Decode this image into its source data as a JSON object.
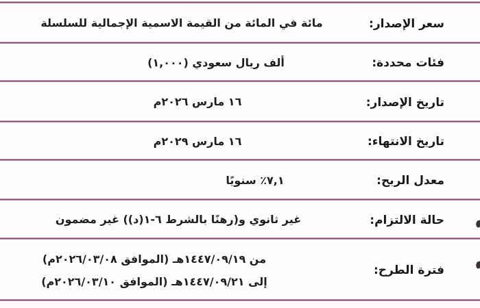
{
  "theme": {
    "divider_core_color": "#7d4b68",
    "divider_glow_color": "#f0d4e3",
    "text_color": "#1d1b1c",
    "background_color": "#fdfcfd"
  },
  "table": {
    "rows": [
      {
        "label": "سعر الإصدار:",
        "value": "مائة في المائة من القيمة الاسمية الإجمالية للسلسلة"
      },
      {
        "label": "فئات محددة:",
        "value": "ألف ريال سعودي (١,٠٠٠)"
      },
      {
        "label": "تاريخ الإصدار:",
        "value": "١٦ مارس ٢٠٢٦م"
      },
      {
        "label": "تاريخ الانتهاء:",
        "value": "١٦ مارس ٢٠٢٩م"
      },
      {
        "label": "معدل الربح:",
        "value": "٧,١٪ سنويًا"
      },
      {
        "label": "حالة الالتزام:",
        "value": "غير ثانوي و(رهنًا بالشرط ٦-١(د)) غير مضمون"
      },
      {
        "label": "فترة الطرح:",
        "value_lines": [
          "من ١٤٤٧/٠٩/١٩هـ (الموافق ٢٠٢٦/٠٣/٠٨م)",
          "إلى ١٤٤٧/٠٩/٢١هـ (الموافق ٢٠٢٦/٠٣/١٠م)"
        ]
      }
    ]
  }
}
